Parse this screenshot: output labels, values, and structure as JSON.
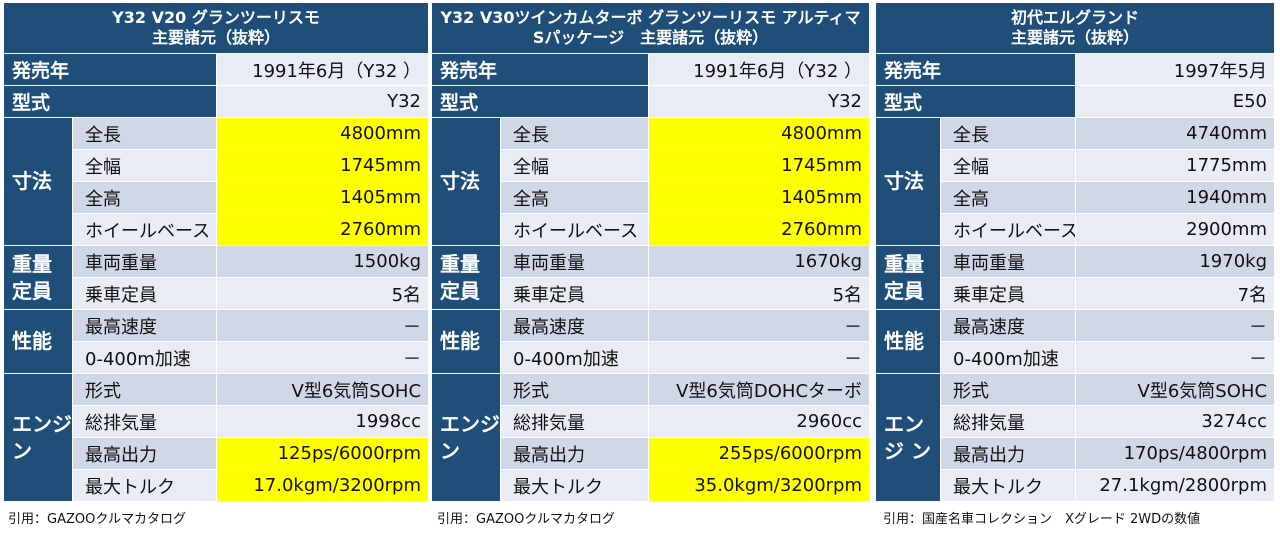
{
  "colors": {
    "header": "#1f4e79",
    "row_dark": "#d0d7e6",
    "row_light": "#e9ecf4",
    "highlight": "#ffff00"
  },
  "labels": {
    "release": "発売年",
    "model": "型式",
    "dims": "寸法",
    "length": "全長",
    "width": "全幅",
    "height": "全高",
    "wheelbase": "ホイールベース",
    "weight_cat": "重量\n定員",
    "weight": "車両重量",
    "capacity": "乗車定員",
    "perf": "性能",
    "top_speed": "最高速度",
    "accel": "0-400m加速",
    "engine_cat": "エンジ\nン",
    "engine_type": "形式",
    "displacement": "総排気量",
    "max_power": "最高出力",
    "max_torque": "最大トルク"
  },
  "panels": [
    {
      "title_line1": "Y32  V20 グランツーリスモ",
      "title_line2": "主要諸元（抜粋）",
      "release": "1991年6月（Y32 ）",
      "model": "Y32",
      "length": "4800mm",
      "width": "1745mm",
      "height": "1405mm",
      "wheelbase": "2760mm",
      "weight": "1500kg",
      "capacity": "5名",
      "top_speed": "－",
      "accel": "－",
      "engine_type": "V型6気筒SOHC",
      "displacement": "1998cc",
      "max_power": "125ps/6000rpm",
      "max_torque": "17.0kgm/3200rpm",
      "source": "引用：GAZOOクルマカタログ"
    },
    {
      "title_line1": "Y32 V30ツインカムターボ グランツーリスモ アルティマ",
      "title_line2": "Sパッケージ　主要諸元（抜粋）",
      "release": "1991年6月（Y32 ）",
      "model": "Y32",
      "length": "4800mm",
      "width": "1745mm",
      "height": "1405mm",
      "wheelbase": "2760mm",
      "weight": "1670kg",
      "capacity": "5名",
      "top_speed": "－",
      "accel": "－",
      "engine_type": "V型6気筒DOHCターボ",
      "displacement": "2960cc",
      "max_power": "255ps/6000rpm",
      "max_torque": "35.0kgm/3200rpm",
      "source": "引用：GAZOOクルマカタログ"
    },
    {
      "title_line1": "初代エルグランド",
      "title_line2": "主要諸元（抜粋）",
      "release": "1997年5月",
      "model": "E50",
      "length": "4740mm",
      "width": "1775mm",
      "height": "1940mm",
      "wheelbase": "2900mm",
      "weight": "1970kg",
      "capacity": "7名",
      "top_speed": "－",
      "accel": "－",
      "engine_type": "V型6気筒SOHC",
      "displacement": "3274cc",
      "max_power": "170ps/4800rpm",
      "max_torque": "27.1kgm/2800rpm",
      "source": "引用：国産名車コレクション　Xグレード 2WDの数値"
    }
  ]
}
